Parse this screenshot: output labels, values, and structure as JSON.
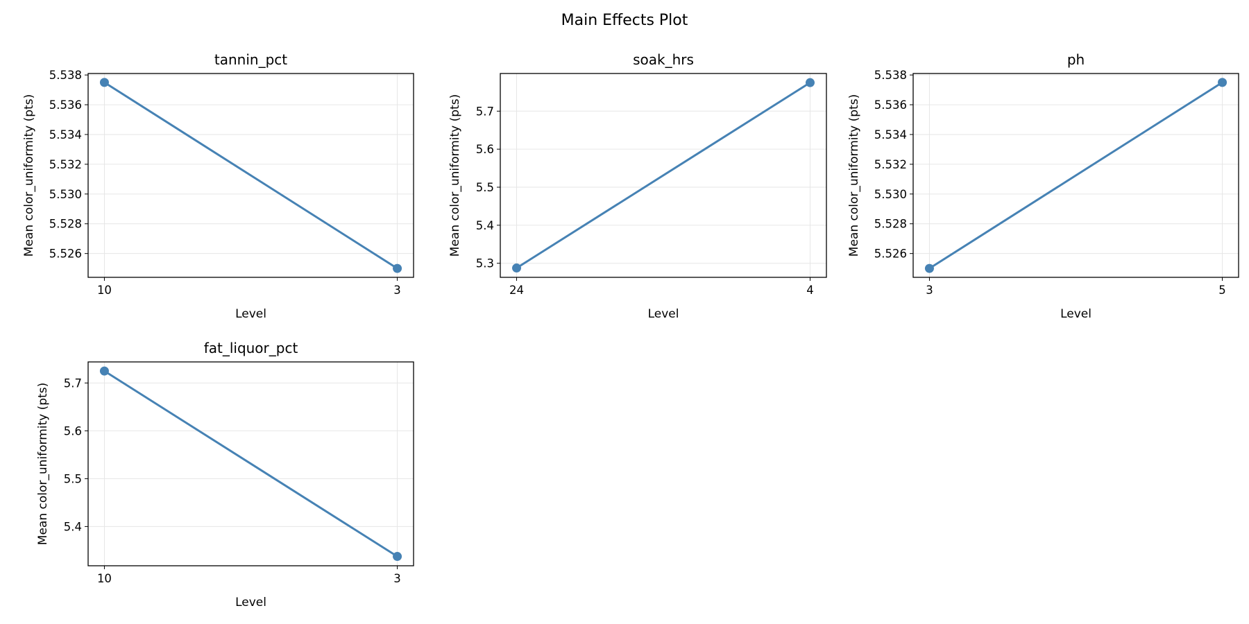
{
  "figure_title": "Main Effects Plot",
  "line_color": "#4682b4",
  "chart_data": [
    {
      "type": "line",
      "title": "tannin_pct",
      "xlabel": "Level",
      "ylabel": "Mean color_uniformity (pts)",
      "categories": [
        "10",
        "3"
      ],
      "values": [
        5.5375,
        5.525
      ],
      "ylim": [
        5.5244,
        5.5381
      ],
      "yticks": [
        5.526,
        5.528,
        5.53,
        5.532,
        5.534,
        5.536,
        5.538
      ],
      "ytick_labels": [
        "5.526",
        "5.528",
        "5.530",
        "5.532",
        "5.534",
        "5.536",
        "5.538"
      ],
      "grid": true
    },
    {
      "type": "line",
      "title": "soak_hrs",
      "xlabel": "Level",
      "ylabel": "Mean color_uniformity (pts)",
      "categories": [
        "24",
        "4"
      ],
      "values": [
        5.2875,
        5.775
      ],
      "ylim": [
        5.263,
        5.799
      ],
      "yticks": [
        5.3,
        5.4,
        5.5,
        5.6,
        5.7
      ],
      "ytick_labels": [
        "5.3",
        "5.4",
        "5.5",
        "5.6",
        "5.7"
      ],
      "grid": true
    },
    {
      "type": "line",
      "title": "ph",
      "xlabel": "Level",
      "ylabel": "Mean color_uniformity (pts)",
      "categories": [
        "3",
        "5"
      ],
      "values": [
        5.525,
        5.5375
      ],
      "ylim": [
        5.5244,
        5.5381
      ],
      "yticks": [
        5.526,
        5.528,
        5.53,
        5.532,
        5.534,
        5.536,
        5.538
      ],
      "ytick_labels": [
        "5.526",
        "5.528",
        "5.530",
        "5.532",
        "5.534",
        "5.536",
        "5.538"
      ],
      "grid": true
    },
    {
      "type": "line",
      "title": "fat_liquor_pct",
      "xlabel": "Level",
      "ylabel": "Mean color_uniformity (pts)",
      "categories": [
        "10",
        "3"
      ],
      "values": [
        5.725,
        5.3375
      ],
      "ylim": [
        5.318,
        5.744
      ],
      "yticks": [
        5.4,
        5.5,
        5.6,
        5.7
      ],
      "ytick_labels": [
        "5.4",
        "5.5",
        "5.6",
        "5.7"
      ],
      "grid": true
    }
  ]
}
